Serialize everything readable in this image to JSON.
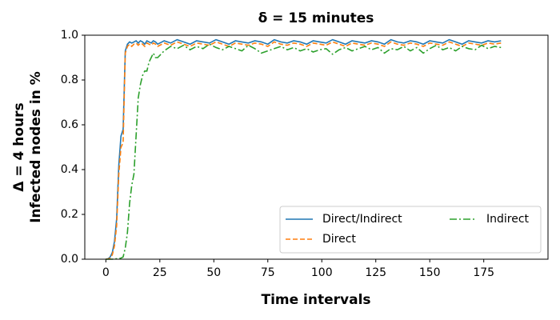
{
  "chart_data": {
    "type": "line",
    "title": "δ = 15 minutes",
    "xlabel": "Time intervals",
    "ylabel": [
      "Δ = 4 hours",
      "Infected nodes in %"
    ],
    "x": [
      0,
      1,
      2,
      3,
      4,
      5,
      6,
      7,
      8,
      9,
      10,
      11,
      12,
      13,
      14,
      15,
      16,
      17,
      18,
      19,
      20,
      21,
      22,
      23,
      24,
      27,
      30,
      33,
      36,
      39,
      42,
      45,
      48,
      51,
      54,
      57,
      60,
      63,
      66,
      69,
      72,
      75,
      78,
      81,
      84,
      87,
      90,
      93,
      96,
      99,
      102,
      105,
      108,
      111,
      114,
      117,
      120,
      123,
      126,
      129,
      132,
      135,
      138,
      141,
      144,
      147,
      150,
      153,
      156,
      159,
      162,
      165,
      168,
      171,
      174,
      177,
      180,
      183
    ],
    "series": [
      {
        "name": "Direct/Indirect",
        "color": "#1f77b4",
        "linestyle": "solid",
        "values": [
          0,
          0.002,
          0.01,
          0.03,
          0.08,
          0.18,
          0.42,
          0.55,
          0.58,
          0.93,
          0.96,
          0.97,
          0.965,
          0.97,
          0.975,
          0.965,
          0.975,
          0.97,
          0.96,
          0.975,
          0.97,
          0.965,
          0.975,
          0.97,
          0.96,
          0.975,
          0.965,
          0.98,
          0.97,
          0.96,
          0.975,
          0.97,
          0.965,
          0.98,
          0.97,
          0.96,
          0.975,
          0.97,
          0.965,
          0.975,
          0.97,
          0.96,
          0.98,
          0.97,
          0.965,
          0.975,
          0.97,
          0.96,
          0.975,
          0.97,
          0.965,
          0.98,
          0.97,
          0.96,
          0.975,
          0.97,
          0.965,
          0.975,
          0.97,
          0.96,
          0.98,
          0.97,
          0.965,
          0.975,
          0.97,
          0.96,
          0.975,
          0.97,
          0.965,
          0.98,
          0.97,
          0.96,
          0.975,
          0.97,
          0.965,
          0.975,
          0.97,
          0.975
        ]
      },
      {
        "name": "Direct",
        "color": "#ff7f0e",
        "linestyle": "dashed",
        "values": [
          0,
          0.001,
          0.005,
          0.02,
          0.06,
          0.15,
          0.38,
          0.5,
          0.52,
          0.92,
          0.95,
          0.96,
          0.95,
          0.96,
          0.965,
          0.955,
          0.965,
          0.96,
          0.95,
          0.965,
          0.96,
          0.955,
          0.965,
          0.96,
          0.95,
          0.965,
          0.955,
          0.97,
          0.96,
          0.95,
          0.965,
          0.96,
          0.955,
          0.97,
          0.96,
          0.95,
          0.965,
          0.96,
          0.955,
          0.965,
          0.96,
          0.95,
          0.97,
          0.96,
          0.955,
          0.965,
          0.96,
          0.95,
          0.965,
          0.96,
          0.955,
          0.97,
          0.96,
          0.95,
          0.965,
          0.96,
          0.955,
          0.965,
          0.96,
          0.95,
          0.97,
          0.96,
          0.955,
          0.965,
          0.96,
          0.95,
          0.965,
          0.96,
          0.955,
          0.97,
          0.96,
          0.95,
          0.965,
          0.96,
          0.955,
          0.965,
          0.96,
          0.965
        ]
      },
      {
        "name": "Indirect",
        "color": "#2ca02c",
        "linestyle": "dashdot",
        "values": [
          0,
          0,
          0,
          0,
          0.001,
          0.002,
          0.003,
          0.005,
          0.01,
          0.05,
          0.12,
          0.25,
          0.33,
          0.38,
          0.55,
          0.72,
          0.78,
          0.82,
          0.84,
          0.84,
          0.88,
          0.9,
          0.92,
          0.9,
          0.9,
          0.93,
          0.95,
          0.94,
          0.955,
          0.935,
          0.95,
          0.94,
          0.96,
          0.945,
          0.935,
          0.95,
          0.94,
          0.93,
          0.955,
          0.94,
          0.92,
          0.93,
          0.94,
          0.95,
          0.935,
          0.945,
          0.93,
          0.94,
          0.925,
          0.935,
          0.94,
          0.915,
          0.935,
          0.945,
          0.93,
          0.94,
          0.95,
          0.935,
          0.945,
          0.92,
          0.94,
          0.935,
          0.95,
          0.93,
          0.945,
          0.92,
          0.94,
          0.955,
          0.935,
          0.945,
          0.93,
          0.95,
          0.94,
          0.935,
          0.955,
          0.94,
          0.95,
          0.945
        ]
      }
    ],
    "xlim": [
      -9.75,
      204.75
    ],
    "xticks": [
      0,
      25,
      50,
      75,
      100,
      125,
      150,
      175
    ],
    "ylim": [
      0,
      1
    ],
    "yticks": [
      {
        "value": 0,
        "label": "0.0"
      },
      0.2,
      0.4,
      0.6,
      0.8,
      {
        "value": 1,
        "label": "1.0"
      }
    ],
    "legend_loc": "lower right",
    "legend_columns": 2
  }
}
